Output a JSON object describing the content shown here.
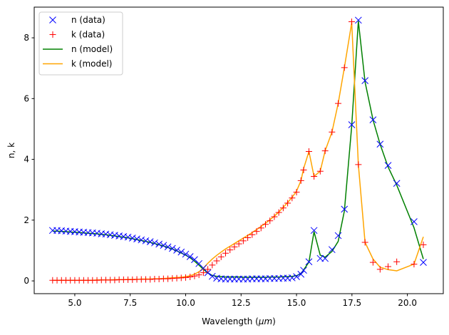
{
  "chart_data": {
    "type": "line",
    "title": "",
    "xlabel": "Wavelength (",
    "xlabel_unit": "μm",
    "xlabel_close": ")",
    "ylabel": "n, k",
    "xlim": [
      3.17,
      21.62
    ],
    "ylim": [
      -0.42,
      9.01
    ],
    "xticks": [
      5.0,
      7.5,
      10.0,
      12.5,
      15.0,
      17.5,
      20.0
    ],
    "xtick_labels": [
      "5.0",
      "7.5",
      "10.0",
      "12.5",
      "15.0",
      "17.5",
      "20.0"
    ],
    "yticks": [
      0,
      2,
      4,
      6,
      8
    ],
    "ytick_labels": [
      "0",
      "2",
      "4",
      "6",
      "8"
    ],
    "grid": false,
    "legend_placement": "upper-left",
    "x": [
      4.0,
      4.2,
      4.4,
      4.6,
      4.8,
      5.0,
      5.2,
      5.4,
      5.6,
      5.8,
      6.0,
      6.2,
      6.4,
      6.6,
      6.8,
      7.0,
      7.2,
      7.4,
      7.6,
      7.8,
      8.0,
      8.2,
      8.4,
      8.6,
      8.8,
      9.0,
      9.2,
      9.4,
      9.6,
      9.8,
      10.0,
      10.2,
      10.4,
      10.6,
      10.8,
      11.0,
      11.2,
      11.4,
      11.6,
      11.8,
      12.0,
      12.2,
      12.4,
      12.6,
      12.8,
      13.0,
      13.2,
      13.4,
      13.6,
      13.8,
      14.0,
      14.2,
      14.4,
      14.6,
      14.8,
      15.0,
      15.2,
      15.32,
      15.56,
      15.79,
      16.07,
      16.29,
      16.6,
      16.88,
      17.16,
      17.49,
      17.79,
      18.09,
      18.45,
      18.77,
      19.13,
      19.52,
      20.3,
      20.72
    ],
    "series": [
      {
        "name": "n (data)",
        "style": "x-marker",
        "color": "#0000ff",
        "values": [
          1.66,
          1.66,
          1.65,
          1.64,
          1.63,
          1.62,
          1.61,
          1.6,
          1.59,
          1.58,
          1.57,
          1.55,
          1.54,
          1.52,
          1.5,
          1.48,
          1.46,
          1.44,
          1.41,
          1.38,
          1.35,
          1.32,
          1.29,
          1.25,
          1.21,
          1.17,
          1.12,
          1.07,
          1.01,
          0.95,
          0.88,
          0.8,
          0.7,
          0.57,
          0.42,
          0.27,
          0.15,
          0.09,
          0.07,
          0.06,
          0.06,
          0.06,
          0.06,
          0.06,
          0.06,
          0.07,
          0.07,
          0.07,
          0.07,
          0.08,
          0.08,
          0.08,
          0.09,
          0.09,
          0.1,
          0.14,
          0.22,
          0.35,
          0.63,
          1.66,
          0.74,
          0.74,
          1.03,
          1.49,
          2.36,
          5.14,
          8.58,
          6.59,
          5.3,
          4.5,
          3.8,
          3.21,
          1.95,
          0.61
        ]
      },
      {
        "name": "k (data)",
        "style": "plus-marker",
        "color": "#ff0000",
        "values": [
          0.02,
          0.02,
          0.02,
          0.02,
          0.02,
          0.02,
          0.02,
          0.02,
          0.02,
          0.02,
          0.02,
          0.03,
          0.03,
          0.03,
          0.03,
          0.04,
          0.04,
          0.04,
          0.04,
          0.05,
          0.05,
          0.05,
          0.05,
          0.06,
          0.06,
          0.07,
          0.07,
          0.08,
          0.09,
          0.1,
          0.11,
          0.13,
          0.16,
          0.2,
          0.27,
          0.38,
          0.52,
          0.66,
          0.79,
          0.91,
          1.02,
          1.12,
          1.22,
          1.32,
          1.42,
          1.52,
          1.63,
          1.74,
          1.86,
          1.98,
          2.11,
          2.25,
          2.4,
          2.56,
          2.73,
          2.92,
          3.3,
          3.65,
          4.26,
          3.44,
          3.61,
          4.28,
          4.9,
          5.84,
          7.02,
          8.53,
          3.83,
          1.27,
          0.61,
          0.38,
          0.47,
          0.63,
          0.55,
          1.19
        ]
      },
      {
        "name": "n (model)",
        "style": "line",
        "color": "#008000",
        "values": [
          1.64,
          1.64,
          1.63,
          1.62,
          1.61,
          1.6,
          1.59,
          1.58,
          1.57,
          1.56,
          1.55,
          1.53,
          1.52,
          1.5,
          1.48,
          1.46,
          1.44,
          1.42,
          1.39,
          1.36,
          1.33,
          1.3,
          1.27,
          1.23,
          1.19,
          1.15,
          1.1,
          1.05,
          0.99,
          0.92,
          0.85,
          0.76,
          0.65,
          0.52,
          0.38,
          0.26,
          0.18,
          0.15,
          0.14,
          0.13,
          0.13,
          0.13,
          0.13,
          0.12,
          0.12,
          0.12,
          0.12,
          0.12,
          0.12,
          0.13,
          0.13,
          0.13,
          0.14,
          0.14,
          0.15,
          0.17,
          0.24,
          0.36,
          0.62,
          1.62,
          0.85,
          0.78,
          0.97,
          1.3,
          2.3,
          5.1,
          8.55,
          6.55,
          5.3,
          4.5,
          3.75,
          3.15,
          1.75,
          0.72
        ]
      },
      {
        "name": "k (model)",
        "style": "line",
        "color": "#ffa500",
        "values": [
          0.02,
          0.02,
          0.02,
          0.02,
          0.02,
          0.02,
          0.02,
          0.02,
          0.02,
          0.02,
          0.03,
          0.03,
          0.03,
          0.03,
          0.04,
          0.04,
          0.04,
          0.05,
          0.05,
          0.05,
          0.06,
          0.06,
          0.06,
          0.07,
          0.07,
          0.08,
          0.09,
          0.1,
          0.11,
          0.12,
          0.14,
          0.17,
          0.22,
          0.3,
          0.42,
          0.58,
          0.72,
          0.84,
          0.95,
          1.05,
          1.14,
          1.23,
          1.32,
          1.41,
          1.5,
          1.59,
          1.69,
          1.79,
          1.9,
          2.01,
          2.13,
          2.27,
          2.42,
          2.58,
          2.75,
          2.95,
          3.3,
          3.7,
          4.26,
          3.44,
          3.61,
          4.28,
          4.9,
          5.84,
          7.02,
          8.5,
          3.83,
          1.27,
          0.72,
          0.45,
          0.37,
          0.33,
          0.55,
          1.45
        ]
      }
    ]
  }
}
